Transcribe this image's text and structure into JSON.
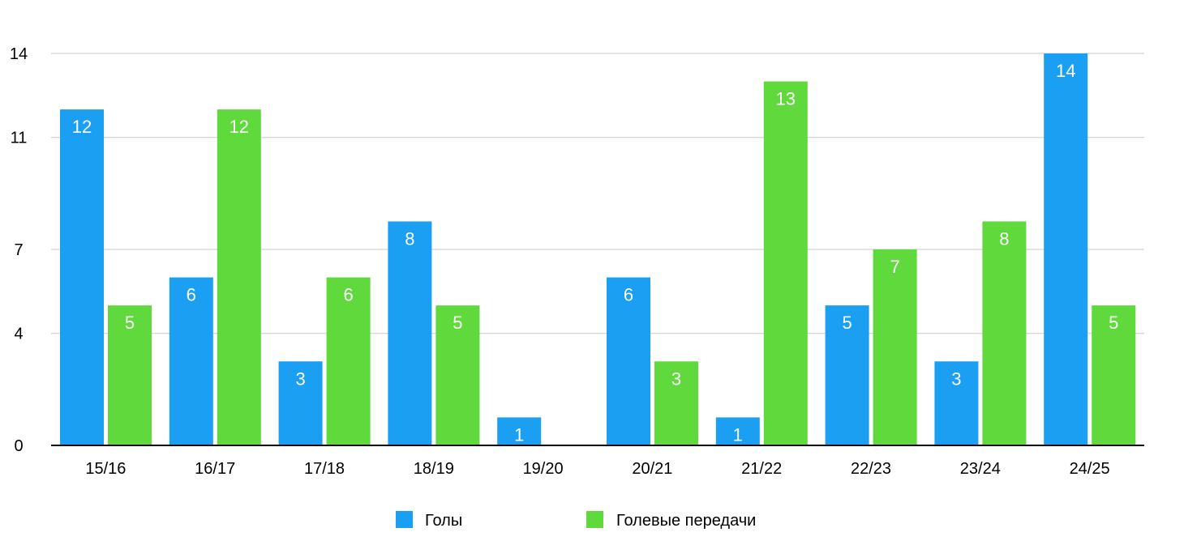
{
  "chart_data": {
    "type": "bar",
    "categories": [
      "15/16",
      "16/17",
      "17/18",
      "18/19",
      "19/20",
      "20/21",
      "21/22",
      "22/23",
      "23/24",
      "24/25"
    ],
    "series": [
      {
        "name": "Голы",
        "color": "#1a9ff3",
        "values": [
          12,
          6,
          3,
          8,
          1,
          6,
          1,
          5,
          3,
          14
        ]
      },
      {
        "name": "Голевые передачи",
        "color": "#5fd93b",
        "values": [
          5,
          12,
          6,
          5,
          0,
          3,
          13,
          7,
          8,
          5
        ]
      }
    ],
    "y_ticks": [
      0,
      4,
      7,
      11,
      14
    ],
    "ylim": [
      0,
      14
    ],
    "grid": true,
    "legend_position": "bottom-center",
    "title": "",
    "xlabel": "",
    "ylabel": ""
  }
}
